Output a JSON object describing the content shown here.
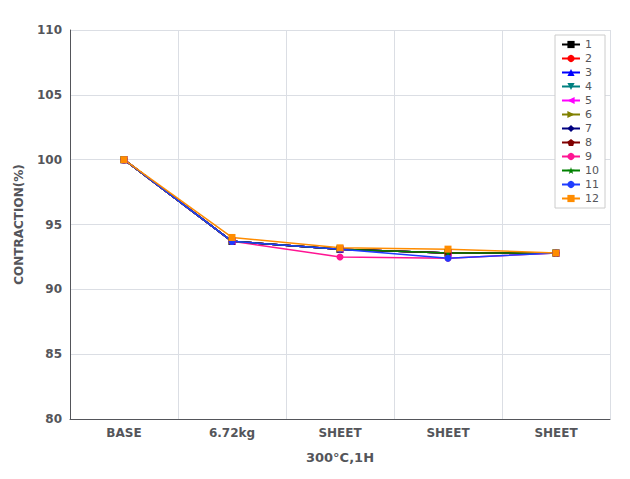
{
  "chart_data": {
    "type": "line",
    "categories": [
      "BASE",
      "6.72kg",
      "SHEET",
      "SHEET",
      "SHEET"
    ],
    "series": [
      {
        "name": "1",
        "color": "#000000",
        "marker": "square",
        "values": [
          100.0,
          93.7,
          93.1,
          92.8,
          92.8
        ]
      },
      {
        "name": "2",
        "color": "#ff0000",
        "marker": "circle",
        "values": [
          100.0,
          93.7,
          93.1,
          92.8,
          92.8
        ]
      },
      {
        "name": "3",
        "color": "#0000ff",
        "marker": "triangle",
        "values": [
          100.0,
          93.7,
          93.1,
          92.8,
          92.8
        ]
      },
      {
        "name": "4",
        "color": "#008080",
        "marker": "triangle-down",
        "values": [
          100.0,
          93.7,
          93.1,
          92.8,
          92.8
        ]
      },
      {
        "name": "5",
        "color": "#ff00ff",
        "marker": "triangle-left",
        "values": [
          100.0,
          93.7,
          93.1,
          92.8,
          92.8
        ]
      },
      {
        "name": "6",
        "color": "#808000",
        "marker": "triangle-right",
        "values": [
          100.0,
          93.7,
          93.1,
          92.8,
          92.8
        ]
      },
      {
        "name": "7",
        "color": "#000080",
        "marker": "diamond",
        "values": [
          100.0,
          93.7,
          93.1,
          92.8,
          92.8
        ]
      },
      {
        "name": "8",
        "color": "#800000",
        "marker": "pentagon",
        "values": [
          100.0,
          93.7,
          93.1,
          92.8,
          92.8
        ]
      },
      {
        "name": "9",
        "color": "#ff1493",
        "marker": "circle",
        "values": [
          100.0,
          93.7,
          92.5,
          92.4,
          92.8
        ]
      },
      {
        "name": "10",
        "color": "#008000",
        "marker": "star",
        "values": [
          100.0,
          93.7,
          93.1,
          92.8,
          92.8
        ]
      },
      {
        "name": "11",
        "color": "#1e3cff",
        "marker": "circle",
        "values": [
          100.0,
          93.7,
          93.1,
          92.4,
          92.8
        ]
      },
      {
        "name": "12",
        "color": "#ff8c00",
        "marker": "square",
        "values": [
          100.0,
          94.0,
          93.2,
          93.1,
          92.8
        ]
      }
    ],
    "xlabel": "300°C,1H",
    "ylabel": "CONTRACTION(%)",
    "ylim": [
      80,
      110
    ],
    "yticks": [
      80,
      85,
      90,
      95,
      100,
      105,
      110
    ],
    "grid": true,
    "legend": "upper right"
  }
}
